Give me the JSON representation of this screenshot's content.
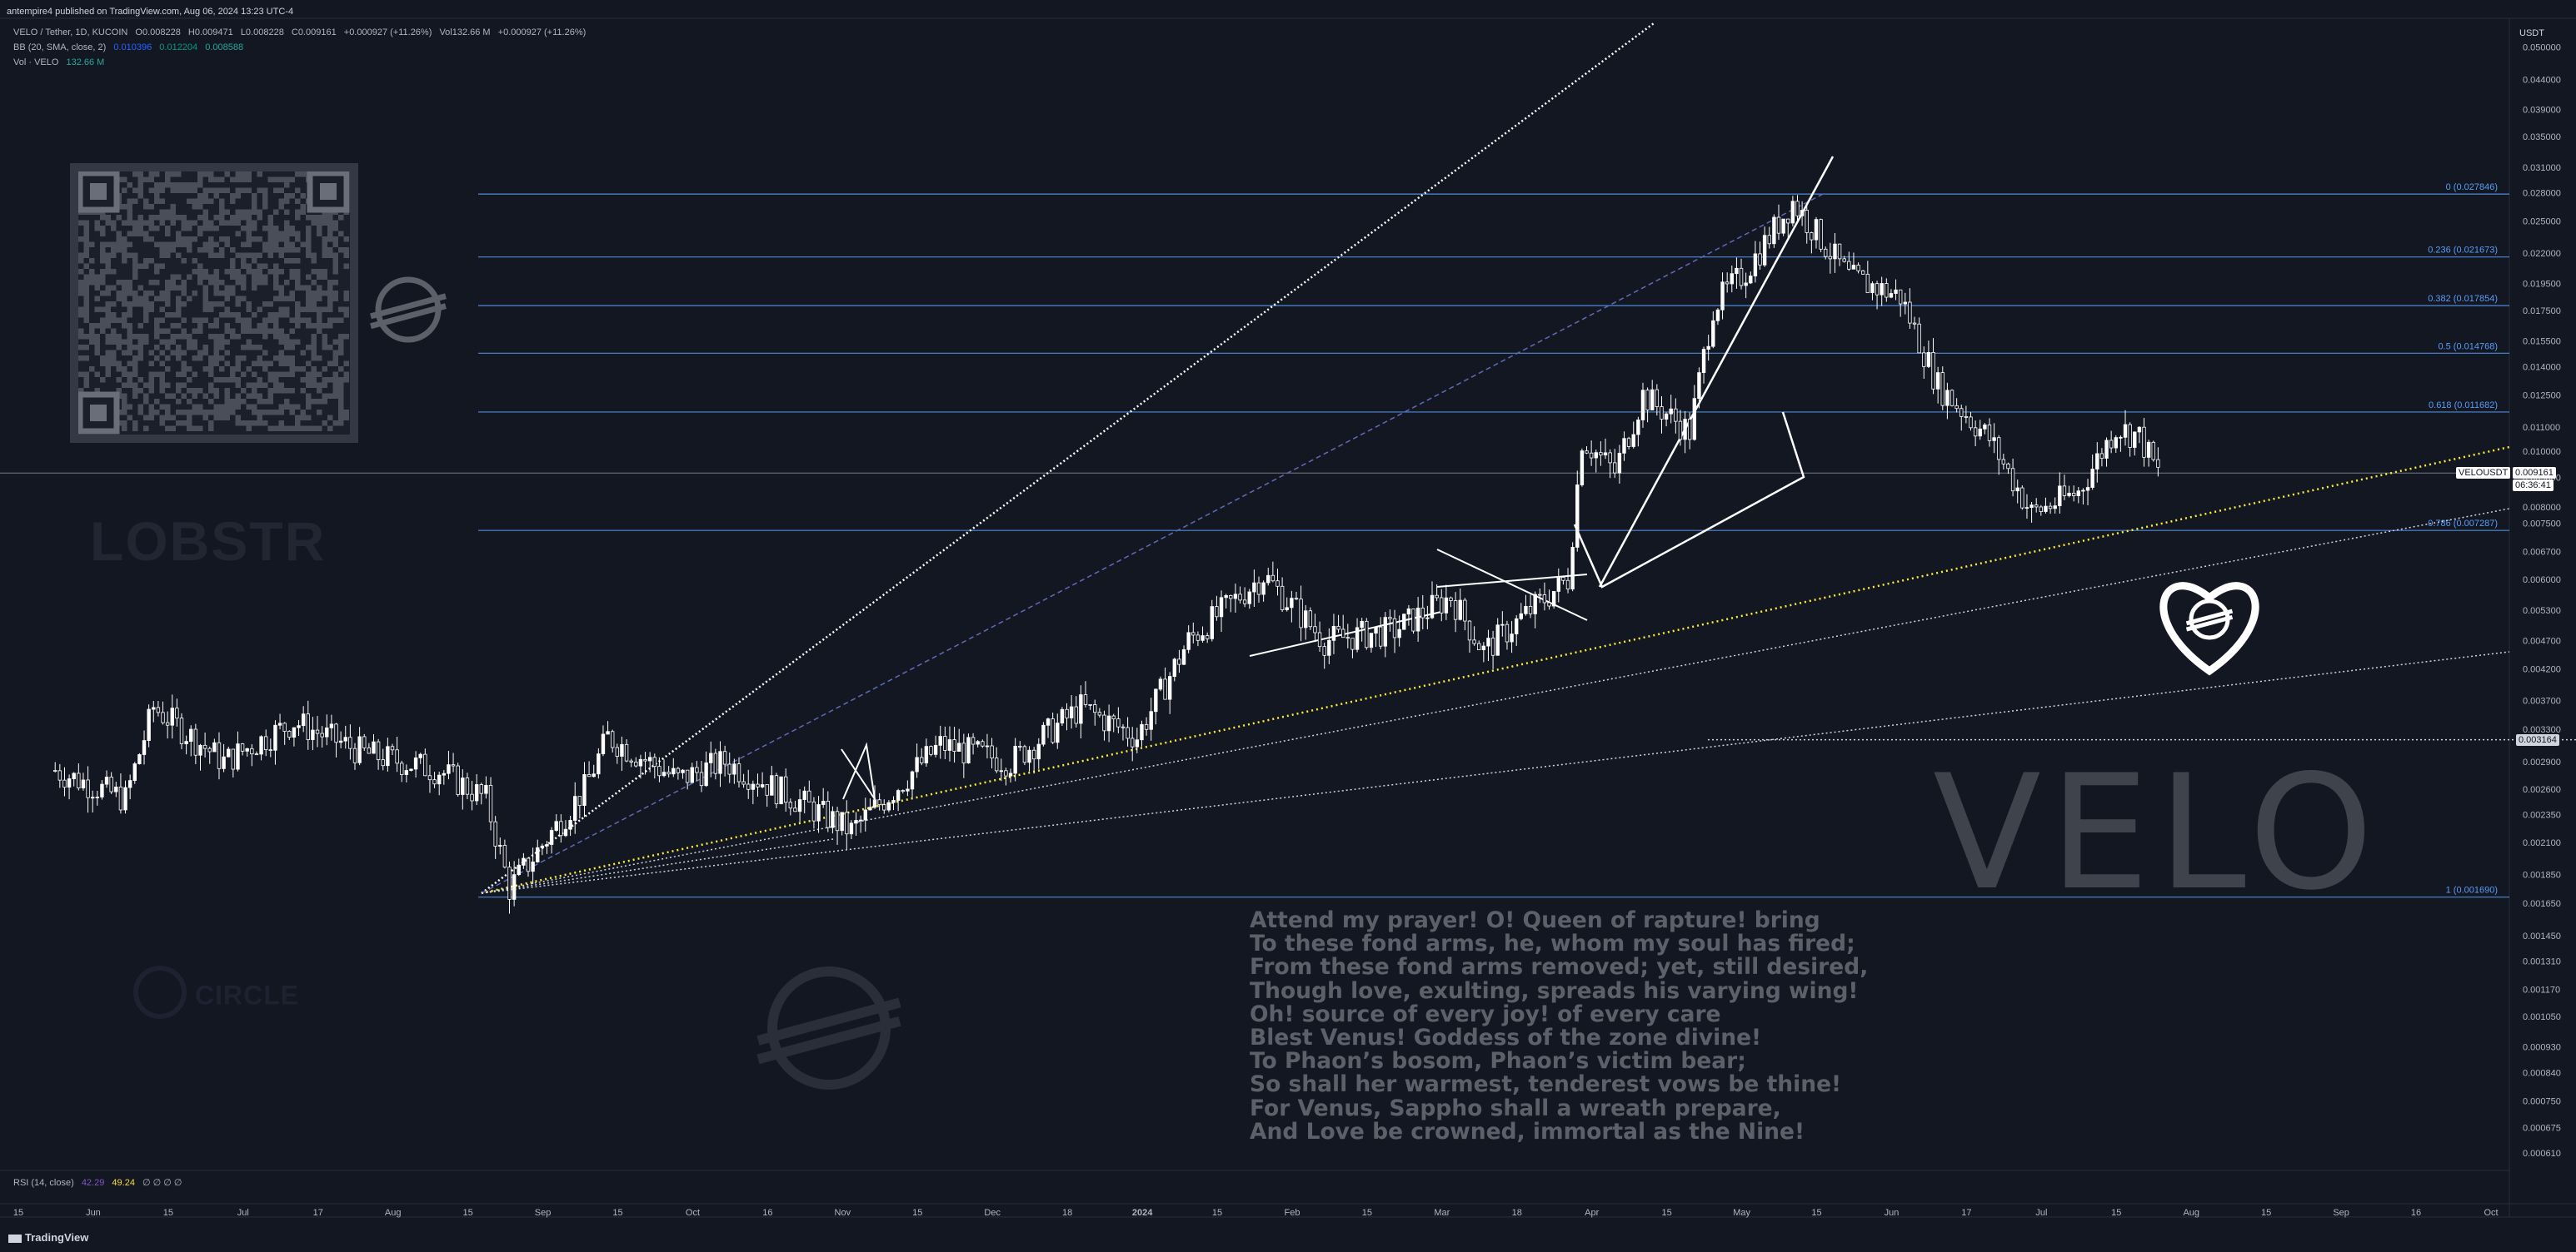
{
  "header": {
    "published": "antempire4 published on TradingView.com, Aug 06, 2024 13:23 UTC-4",
    "symbol_line": [
      "VELO / Tether, 1D, KUCOIN",
      "O0.008228",
      "H0.009471",
      "L0.008228",
      "C0.009161",
      "+0.000927 (+11.26%)",
      "Vol132.66 M",
      "+0.000927 (+11.26%)"
    ],
    "bb_line": [
      "BB (20, SMA, close, 2)",
      "0.010396",
      "0.012204",
      "0.008588"
    ],
    "vol_line": [
      "Vol · VELO",
      "132.66 M"
    ]
  },
  "currency": "USDT",
  "rsi_legend": [
    "RSI (14, close)",
    "42.29",
    "49.24",
    "∅ ∅ ∅ ∅"
  ],
  "footer_logo": "TradingView",
  "price_tag": {
    "symbol": "VELOUSDT",
    "price": "0.009161",
    "countdown": "06:36:41"
  },
  "level_tag": "0.003164",
  "watermarks": {
    "lobstr": "LOBSTR",
    "circle": "CIRCLE",
    "velo": "VELO"
  },
  "poem": [
    "Attend my prayer! O! Queen of rapture! bring",
    "To these fond arms, he, whom my soul has fired;",
    "From these fond arms removed; yet, still desired,",
    "Though love, exulting, spreads his varying wing!",
    "Oh! source of every joy! of every care",
    "Blest Venus! Goddess of the zone divine!",
    "To Phaon’s bosom, Phaon’s victim bear;",
    "So shall her warmest, tenderest vows be thine!",
    "For Venus, Sappho shall a wreath prepare,",
    "And Love be crowned, immortal as the Nine!"
  ],
  "colors": {
    "background": "#131722",
    "candles": "#ffffff",
    "fib": "#5b9cf6",
    "yellow_trend": "#ffeb3b",
    "axis_text": "#b2b5be",
    "poem": "#5d6069"
  },
  "chart_data": {
    "type": "candlestick",
    "symbol": "VELO / Tether",
    "timeframe": "1D",
    "exchange": "KUCOIN",
    "y_scale": "log",
    "ylim": [
      0.00058,
      0.055
    ],
    "y_ticks": [
      "0.050000",
      "0.044000",
      "0.039000",
      "0.035000",
      "0.031000",
      "0.028000",
      "0.025000",
      "0.022000",
      "0.019500",
      "0.017500",
      "0.015500",
      "0.014000",
      "0.012500",
      "0.011000",
      "0.010000",
      "0.009000",
      "0.008000",
      "0.007500",
      "0.006700",
      "0.006000",
      "0.005300",
      "0.004700",
      "0.004200",
      "0.003700",
      "0.003300",
      "0.002900",
      "0.002600",
      "0.002350",
      "0.002100",
      "0.001850",
      "0.001650",
      "0.001450",
      "0.001310",
      "0.001170",
      "0.001050",
      "0.000930",
      "0.000840",
      "0.000750",
      "0.000675",
      "0.000610"
    ],
    "x_ticks": [
      "15",
      "Jun",
      "15",
      "Jul",
      "17",
      "Aug",
      "15",
      "Sep",
      "15",
      "Oct",
      "16",
      "Nov",
      "15",
      "Dec",
      "18",
      "2024",
      "15",
      "Feb",
      "15",
      "Mar",
      "18",
      "Apr",
      "15",
      "May",
      "15",
      "Jun",
      "17",
      "Jul",
      "15",
      "Aug",
      "15",
      "Sep",
      "16",
      "Oct"
    ],
    "price_path": [
      [
        "2023-05-15",
        0.0028
      ],
      [
        "2023-05-30",
        0.0025
      ],
      [
        "2023-06-05",
        0.0036
      ],
      [
        "2023-06-20",
        0.0029
      ],
      [
        "2023-07-05",
        0.0034
      ],
      [
        "2023-07-20",
        0.003
      ],
      [
        "2023-08-05",
        0.0028
      ],
      [
        "2023-08-15",
        0.0025
      ],
      [
        "2023-08-20",
        0.00175
      ],
      [
        "2023-09-05",
        0.0026
      ],
      [
        "2023-09-10",
        0.0032
      ],
      [
        "2023-09-25",
        0.0027
      ],
      [
        "2023-10-05",
        0.0029
      ],
      [
        "2023-10-20",
        0.0025
      ],
      [
        "2023-11-01",
        0.0022
      ],
      [
        "2023-11-20",
        0.0031
      ],
      [
        "2023-12-05",
        0.0029
      ],
      [
        "2023-12-20",
        0.0036
      ],
      [
        "2024-01-01",
        0.0032
      ],
      [
        "2024-01-12",
        0.0047
      ],
      [
        "2024-01-28",
        0.0061
      ],
      [
        "2024-02-10",
        0.0047
      ],
      [
        "2024-02-25",
        0.0049
      ],
      [
        "2024-03-08",
        0.0056
      ],
      [
        "2024-03-15",
        0.0045
      ],
      [
        "2024-03-25",
        0.0053
      ],
      [
        "2024-04-02",
        0.006
      ],
      [
        "2024-04-05",
        0.0105
      ],
      [
        "2024-04-12",
        0.0092
      ],
      [
        "2024-04-18",
        0.0125
      ],
      [
        "2024-04-28",
        0.0108
      ],
      [
        "2024-05-03",
        0.0178
      ],
      [
        "2024-05-10",
        0.0205
      ],
      [
        "2024-05-20",
        0.027
      ],
      [
        "2024-06-01",
        0.02
      ],
      [
        "2024-06-12",
        0.0185
      ],
      [
        "2024-06-20",
        0.013
      ],
      [
        "2024-07-01",
        0.0105
      ],
      [
        "2024-07-10",
        0.0078
      ],
      [
        "2024-07-20",
        0.0085
      ],
      [
        "2024-07-28",
        0.011
      ],
      [
        "2024-08-02",
        0.0106
      ],
      [
        "2024-08-06",
        0.009161
      ]
    ],
    "fib_levels": [
      {
        "ratio": "0",
        "price": 0.027846,
        "label": "0 (0.027846)"
      },
      {
        "ratio": "0.236",
        "price": 0.021673,
        "label": "0.236 (0.021673)"
      },
      {
        "ratio": "0.382",
        "price": 0.017854,
        "label": "0.382 (0.017854)"
      },
      {
        "ratio": "0.5",
        "price": 0.014768,
        "label": "0.5 (0.014768)"
      },
      {
        "ratio": "0.618",
        "price": 0.011682,
        "label": "0.618 (0.011682)"
      },
      {
        "ratio": "0.786",
        "price": 0.007287,
        "label": "0.786 (0.007287)"
      },
      {
        "ratio": "1",
        "price": 0.00169,
        "label": "1 (0.001690)"
      }
    ],
    "last_price": 0.009161,
    "horizontal_level": 0.003164
  }
}
